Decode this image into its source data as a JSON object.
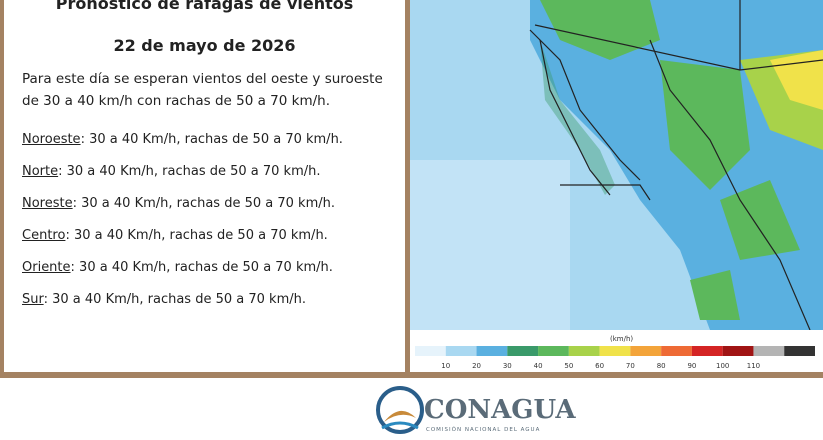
{
  "header": {
    "title": "Pronóstico de ráfagas de vientos",
    "date": "22 de mayo de 2026"
  },
  "summary": "Para este día se esperan vientos del oeste y suroeste de 30 a 40 km/h con rachas de 50 a 70 km/h.",
  "regions": [
    {
      "name": "Noroeste",
      "text": ":  30 a 40 Km/h, rachas de 50 a 70 km/h."
    },
    {
      "name": "Norte",
      "text": ": 30 a 40 Km/h, rachas de 50 a 70 km/h."
    },
    {
      "name": "Noreste",
      "text": ": 30 a 40 Km/h, rachas de 50 a 70 km/h."
    },
    {
      "name": "Centro",
      "text": ":  30 a 40 Km/h, rachas de 50 a 70 km/h."
    },
    {
      "name": "Oriente",
      "text": ":  30 a 40 Km/h, rachas de 50 a 70 km/h."
    },
    {
      "name": "Sur",
      "text": ":  30 a 40 Km/h, rachas de 50 a 70 km/h."
    }
  ],
  "legend": {
    "unit": "(km/h)",
    "ticks": [
      10,
      20,
      30,
      40,
      50,
      60,
      70,
      80,
      90,
      100,
      110
    ],
    "colors": [
      "#e6f3fb",
      "#a9d8f1",
      "#5ab0e0",
      "#3a9a6a",
      "#5cb85c",
      "#a8d24a",
      "#f0e24a",
      "#f3a43a",
      "#ee6a35",
      "#d42424",
      "#a01414",
      "#b4b4b4",
      "#333333"
    ]
  },
  "footer": {
    "logo": "CONAGUA",
    "subtitle": "COMISIÓN NACIONAL DEL AGUA"
  }
}
